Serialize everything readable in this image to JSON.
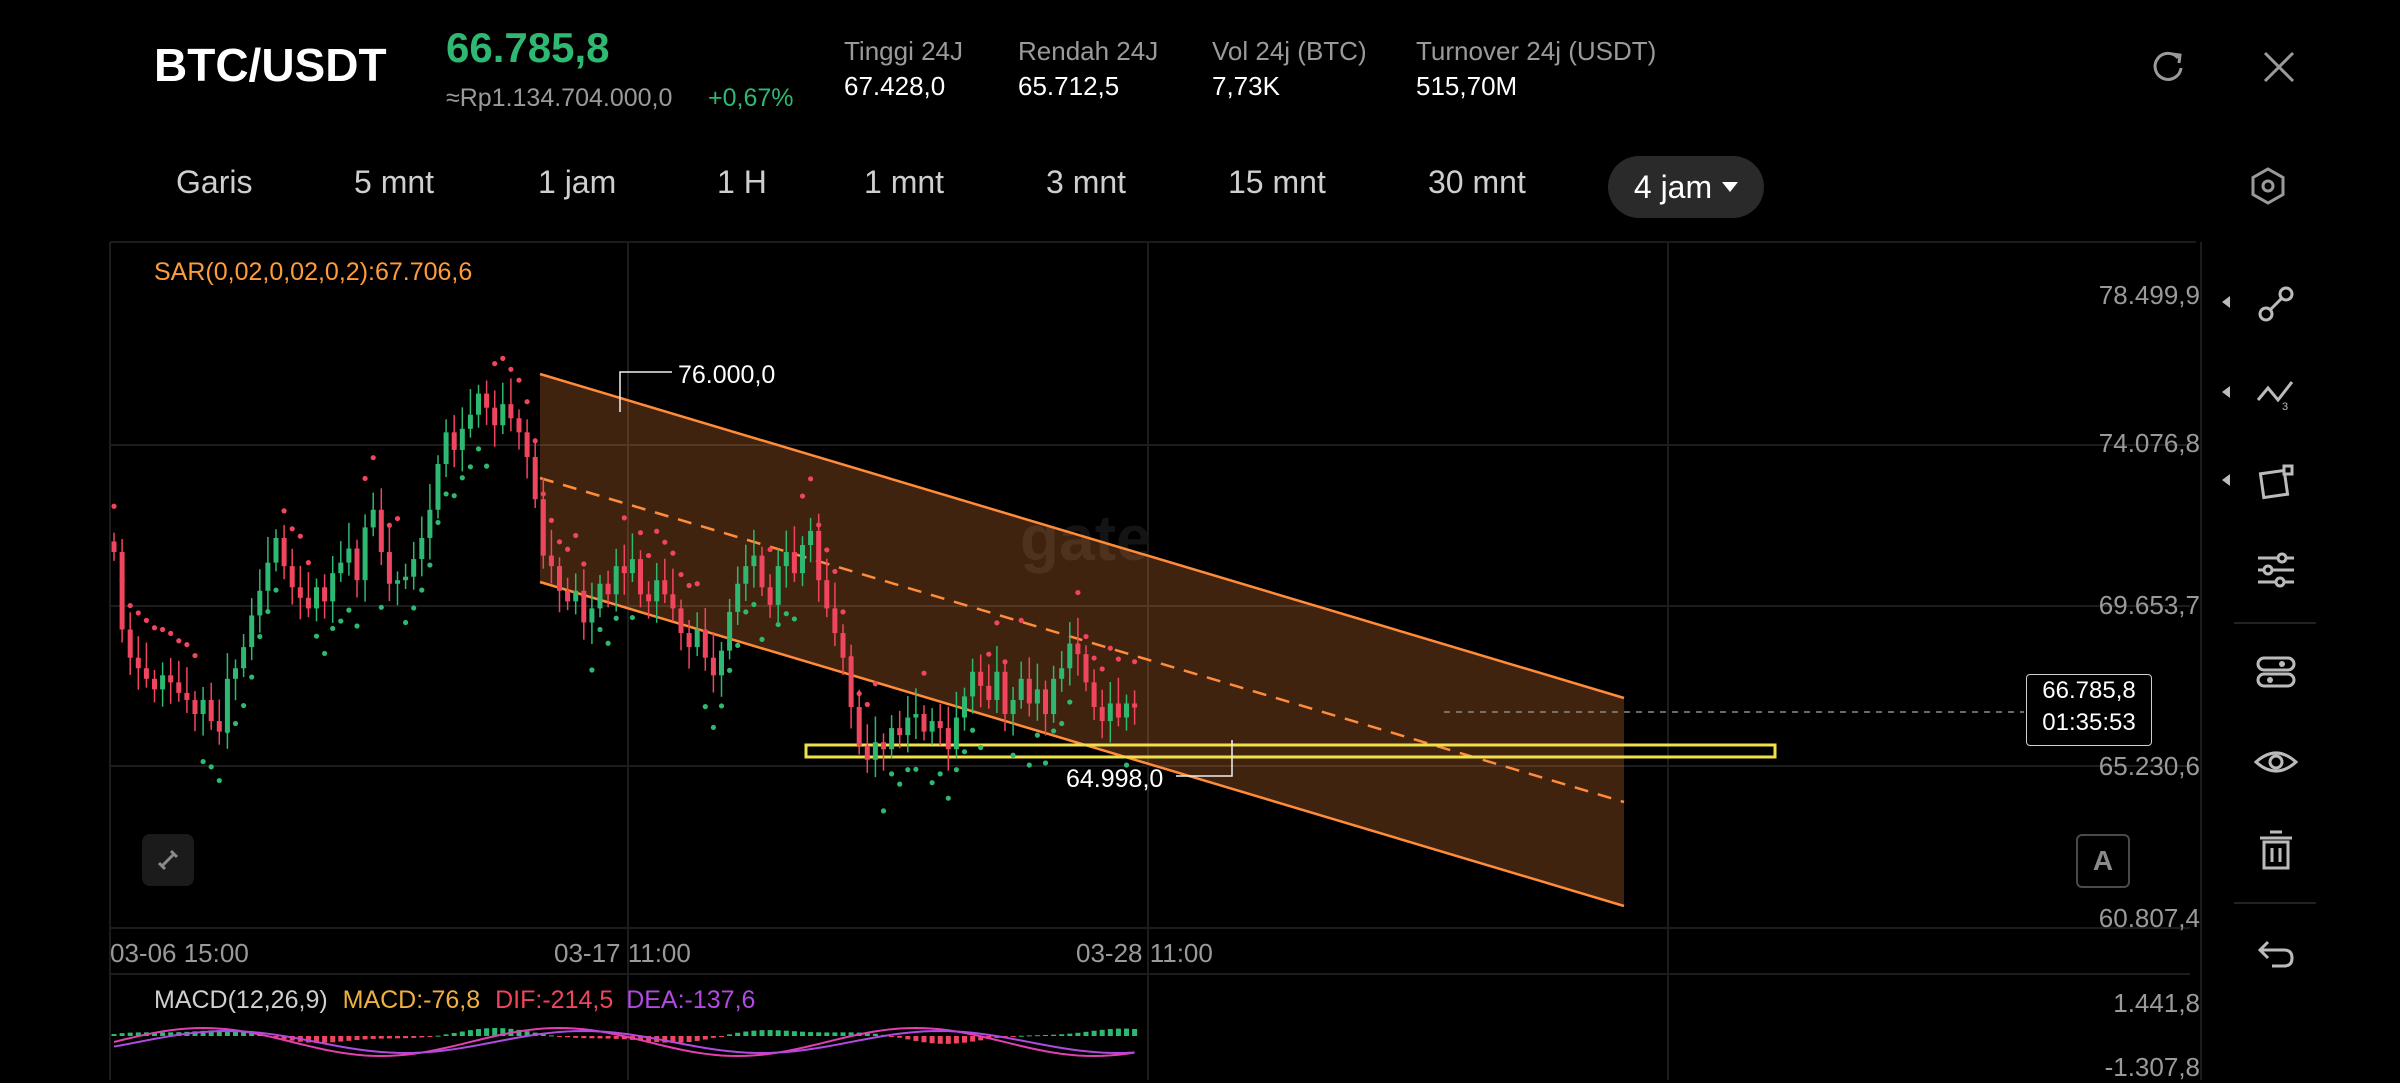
{
  "header": {
    "pair": "BTC/USDT",
    "price": "66.785,8",
    "price_idr": "≈Rp1.134.704.000,0",
    "change": "+0,67%",
    "stats": [
      {
        "label": "Tinggi 24J",
        "value": "67.428,0"
      },
      {
        "label": "Rendah 24J",
        "value": "65.712,5"
      },
      {
        "label": "Vol 24j (BTC)",
        "value": "7,73K"
      },
      {
        "label": "Turnover 24j (USDT)",
        "value": "515,70M"
      }
    ],
    "icons": {
      "rotate": "rotate-icon",
      "close": "close-icon"
    }
  },
  "timeframes": [
    "Garis",
    "5 mnt",
    "1 jam",
    "1 H",
    "1 mnt",
    "3 mnt",
    "15 mnt",
    "30 mnt"
  ],
  "active_timeframe": "4 jam",
  "indicator_sar": "SAR(0,02,0,02,0,2):67.706,6",
  "macd": {
    "label": "MACD(12,26,9)",
    "macd": "MACD:-76,8",
    "dif": "DIF:-214,5",
    "dea": "DEA:-137,6",
    "ytop": "1.441,8",
    "ybottom": "-1.307,8"
  },
  "colors": {
    "up": "#2eb872",
    "down": "#f0455f",
    "sar": "#ff8a4a",
    "channel": "#ff8c3a",
    "support": "#f0e04a"
  },
  "chart_data": {
    "type": "candlestick",
    "y_ticks": [
      "78.499,9",
      "74.076,8",
      "69.653,7",
      "65.230,6",
      "60.807,4"
    ],
    "ylim": [
      60807.4,
      78499.9
    ],
    "x_ticks": [
      "03-06 15:00",
      "03-17 11:00",
      "03-28 11:00"
    ],
    "annotations": {
      "high": "76.000,0",
      "low": "64.998,0"
    },
    "last_price": "66.785,8",
    "countdown": "01:35:53",
    "closes": [
      71200,
      69000,
      68200,
      67900,
      67600,
      67300,
      67700,
      67500,
      67200,
      67000,
      66600,
      67000,
      66400,
      66100,
      67600,
      67900,
      68500,
      69400,
      70100,
      70900,
      71600,
      70800,
      70200,
      69900,
      69600,
      70200,
      69800,
      70600,
      70900,
      71300,
      70400,
      71900,
      72400,
      71200,
      70300,
      70400,
      70500,
      71000,
      71600,
      72400,
      73700,
      74600,
      74100,
      74700,
      75100,
      75700,
      75300,
      74800,
      75400,
      75000,
      74600,
      73900,
      72700,
      71100,
      70800,
      70100,
      69800,
      70100,
      69200,
      69600,
      70300,
      70000,
      70800,
      70600,
      71000,
      70000,
      69800,
      70400,
      70000,
      69600,
      68900,
      68500,
      69000,
      68200,
      67700,
      68400,
      69500,
      70300,
      70800,
      71100,
      70200,
      69700,
      70800,
      71200,
      70600,
      71400,
      71800,
      70400,
      69600,
      68900,
      68200,
      66800,
      65700,
      65300,
      65800,
      65600,
      66200,
      66000,
      66500,
      66600,
      66100,
      66400,
      66200,
      65600,
      66500,
      67100,
      67800,
      67400,
      67000,
      67800,
      66600,
      67000,
      67600,
      66900,
      67300,
      66600,
      67600,
      67900,
      68600,
      68300,
      67500,
      66800,
      66400,
      66900,
      66500,
      66900,
      66785.8
    ]
  },
  "sidebar_icons": [
    "draw-line-icon",
    "fibonacci-icon",
    "shape-icon",
    "indicator-settings-icon",
    "indicator-list-icon",
    "visibility-icon",
    "delete-icon",
    "undo-icon"
  ]
}
